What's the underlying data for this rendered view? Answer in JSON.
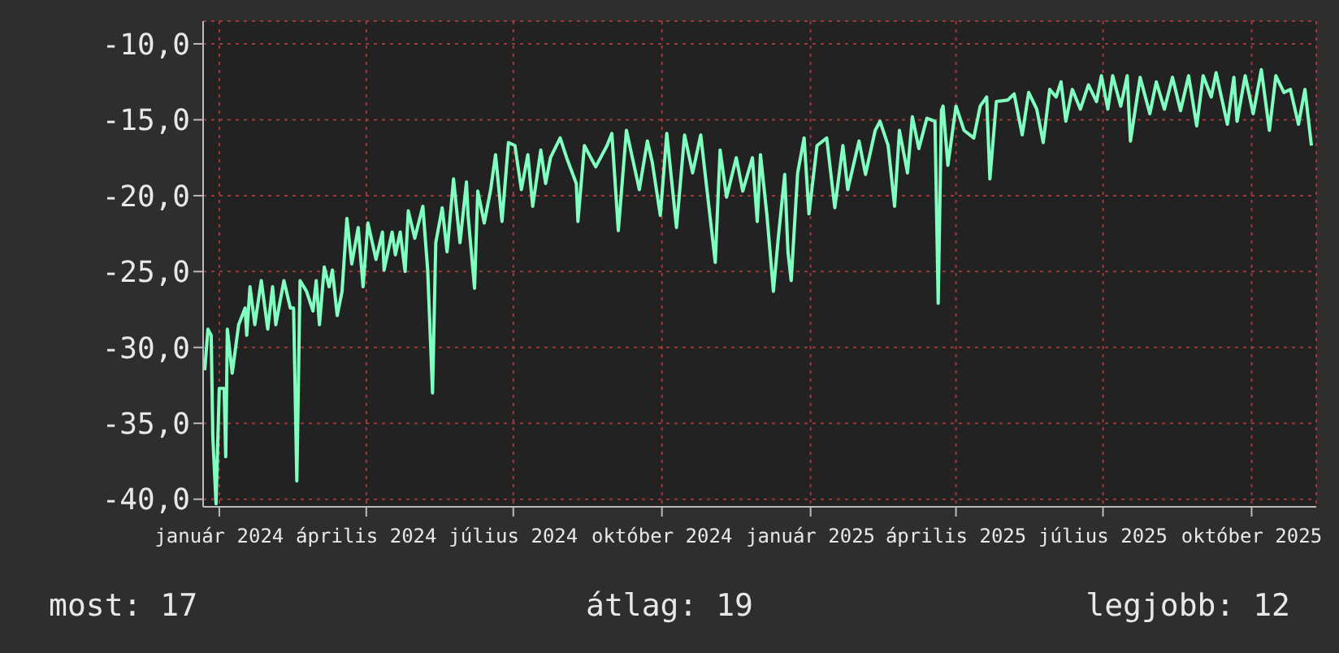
{
  "chart_data": {
    "type": "line",
    "xlim": [
      "2023-12-22",
      "2025-11-10"
    ],
    "xticks": [
      {
        "value": "2024-01-01",
        "label": "január 2024"
      },
      {
        "value": "2024-04-01",
        "label": "április 2024"
      },
      {
        "value": "2024-07-01",
        "label": "július 2024"
      },
      {
        "value": "2024-10-01",
        "label": "október 2024"
      },
      {
        "value": "2025-01-01",
        "label": "január 2025"
      },
      {
        "value": "2025-04-01",
        "label": "április 2025"
      },
      {
        "value": "2025-07-01",
        "label": "július 2025"
      },
      {
        "value": "2025-10-01",
        "label": "október 2025"
      }
    ],
    "ylim": [
      -40.5,
      -8.5
    ],
    "yticks": [
      {
        "value": -10,
        "label": "-10,0"
      },
      {
        "value": -15,
        "label": "-15,0"
      },
      {
        "value": -20,
        "label": "-20,0"
      },
      {
        "value": -25,
        "label": "-25,0"
      },
      {
        "value": -30,
        "label": "-30,0"
      },
      {
        "value": -35,
        "label": "-35,0"
      },
      {
        "value": -40,
        "label": "-40,0"
      }
    ],
    "grid": true,
    "annotations": [
      "most: 17",
      "átlag: 19",
      "legjobb: 12"
    ],
    "x": [
      "2023-12-23",
      "2023-12-25",
      "2023-12-27",
      "2023-12-28",
      "2023-12-30",
      "2024-01-01",
      "2024-01-04",
      "2024-01-05",
      "2024-01-06",
      "2024-01-09",
      "2024-01-13",
      "2024-01-17",
      "2024-01-18",
      "2024-01-20",
      "2024-01-23",
      "2024-01-27",
      "2024-01-31",
      "2024-02-03",
      "2024-02-05",
      "2024-02-10",
      "2024-02-14",
      "2024-02-16",
      "2024-02-18",
      "2024-02-20",
      "2024-02-24",
      "2024-02-28",
      "2024-03-01",
      "2024-03-03",
      "2024-03-06",
      "2024-03-09",
      "2024-03-11",
      "2024-03-14",
      "2024-03-17",
      "2024-03-20",
      "2024-03-23",
      "2024-03-27",
      "2024-03-30",
      "2024-04-02",
      "2024-04-07",
      "2024-04-11",
      "2024-04-12",
      "2024-04-17",
      "2024-04-19",
      "2024-04-22",
      "2024-04-25",
      "2024-04-27",
      "2024-05-01",
      "2024-05-06",
      "2024-05-09",
      "2024-05-12",
      "2024-05-14",
      "2024-05-18",
      "2024-05-21",
      "2024-05-25",
      "2024-05-29",
      "2024-06-02",
      "2024-06-03",
      "2024-06-07",
      "2024-06-09",
      "2024-06-13",
      "2024-06-17",
      "2024-06-20",
      "2024-06-24",
      "2024-06-28",
      "2024-07-02",
      "2024-07-06",
      "2024-07-10",
      "2024-07-13",
      "2024-07-18",
      "2024-07-21",
      "2024-07-24",
      "2024-07-30",
      "2024-08-03",
      "2024-08-09",
      "2024-08-10",
      "2024-08-14",
      "2024-08-21",
      "2024-08-28",
      "2024-08-31",
      "2024-09-04",
      "2024-09-09",
      "2024-09-17",
      "2024-09-22",
      "2024-09-25",
      "2024-09-30",
      "2024-10-04",
      "2024-10-10",
      "2024-10-15",
      "2024-10-20",
      "2024-10-25",
      "2024-11-03",
      "2024-11-06",
      "2024-11-10",
      "2024-11-16",
      "2024-11-20",
      "2024-11-26",
      "2024-11-29",
      "2024-12-01",
      "2024-12-05",
      "2024-12-09",
      "2024-12-12",
      "2024-12-16",
      "2024-12-18",
      "2024-12-20",
      "2024-12-24",
      "2024-12-28",
      "2024-12-31",
      "2025-01-05",
      "2025-01-11",
      "2025-01-16",
      "2025-01-21",
      "2025-01-24",
      "2025-01-31",
      "2025-02-04",
      "2025-02-10",
      "2025-02-13",
      "2025-02-18",
      "2025-02-22",
      "2025-02-25",
      "2025-03-02",
      "2025-03-05",
      "2025-03-09",
      "2025-03-14",
      "2025-03-19",
      "2025-03-21",
      "2025-03-23",
      "2025-03-24",
      "2025-03-27",
      "2025-04-01",
      "2025-04-06",
      "2025-04-12",
      "2025-04-16",
      "2025-04-20",
      "2025-04-22",
      "2025-04-26",
      "2025-05-03",
      "2025-05-07",
      "2025-05-12",
      "2025-05-16",
      "2025-05-21",
      "2025-05-25",
      "2025-05-29",
      "2025-06-02",
      "2025-06-05",
      "2025-06-08",
      "2025-06-12",
      "2025-06-17",
      "2025-06-22",
      "2025-06-27",
      "2025-06-30",
      "2025-07-04",
      "2025-07-07",
      "2025-07-12",
      "2025-07-16",
      "2025-07-18",
      "2025-07-24",
      "2025-07-30",
      "2025-08-03",
      "2025-08-08",
      "2025-08-13",
      "2025-08-18",
      "2025-08-23",
      "2025-08-28",
      "2025-09-01",
      "2025-09-06",
      "2025-09-09",
      "2025-09-16",
      "2025-09-20",
      "2025-09-22",
      "2025-09-27",
      "2025-10-02",
      "2025-10-07",
      "2025-10-12",
      "2025-10-16",
      "2025-10-21",
      "2025-10-25",
      "2025-10-30",
      "2025-11-03",
      "2025-11-07"
    ],
    "series": [
      {
        "color": "#80ffc0",
        "values": [
          -31.5,
          -28.8,
          -29.2,
          -35.9,
          -40.3,
          -32.7,
          -32.7,
          -37.2,
          -28.8,
          -31.7,
          -28.5,
          -27.4,
          -29.2,
          -26.0,
          -28.5,
          -25.6,
          -28.8,
          -26.0,
          -28.5,
          -25.6,
          -27.4,
          -27.4,
          -38.8,
          -25.6,
          -26.3,
          -27.6,
          -25.6,
          -28.5,
          -24.7,
          -26.0,
          -24.9,
          -27.9,
          -26.3,
          -21.5,
          -24.5,
          -22.1,
          -26.0,
          -21.8,
          -24.2,
          -22.4,
          -24.9,
          -22.4,
          -23.9,
          -22.4,
          -25.0,
          -21.0,
          -22.8,
          -20.7,
          -24.9,
          -33.0,
          -23.1,
          -20.8,
          -23.7,
          -18.9,
          -23.1,
          -19.1,
          -21.3,
          -26.1,
          -19.7,
          -21.8,
          -19.6,
          -17.3,
          -21.7,
          -16.5,
          -16.7,
          -19.6,
          -17.3,
          -20.7,
          -17.0,
          -19.2,
          -17.5,
          -16.2,
          -17.5,
          -19.2,
          -21.7,
          -16.7,
          -18.1,
          -16.7,
          -15.9,
          -22.3,
          -15.7,
          -19.6,
          -16.4,
          -17.8,
          -21.3,
          -15.9,
          -22.1,
          -16.0,
          -18.5,
          -16.0,
          -24.4,
          -17.0,
          -20.1,
          -17.5,
          -19.7,
          -17.5,
          -21.7,
          -17.3,
          -21.3,
          -26.3,
          -22.8,
          -18.6,
          -23.7,
          -25.6,
          -18.5,
          -16.2,
          -21.2,
          -16.7,
          -16.2,
          -20.8,
          -16.7,
          -19.6,
          -16.4,
          -18.6,
          -15.7,
          -15.1,
          -16.7,
          -20.7,
          -15.7,
          -18.5,
          -14.8,
          -16.9,
          -14.9,
          -15.1,
          -27.1,
          -14.4,
          -14.1,
          -18.0,
          -14.1,
          -15.7,
          -16.2,
          -14.1,
          -13.5,
          -18.9,
          -13.8,
          -13.7,
          -13.3,
          -16.0,
          -13.2,
          -14.3,
          -16.5,
          -13.0,
          -13.5,
          -12.5,
          -15.1,
          -13.0,
          -14.3,
          -12.7,
          -13.8,
          -12.1,
          -14.3,
          -12.1,
          -14.1,
          -12.1,
          -16.4,
          -12.2,
          -14.6,
          -12.5,
          -14.3,
          -12.2,
          -14.4,
          -12.1,
          -15.4,
          -12.1,
          -13.5,
          -11.9,
          -15.3,
          -12.2,
          -15.1,
          -12.1,
          -14.6,
          -11.7,
          -15.7,
          -12.1,
          -13.2,
          -13.0,
          -15.3,
          -13.0,
          -16.7
        ]
      }
    ]
  }
}
